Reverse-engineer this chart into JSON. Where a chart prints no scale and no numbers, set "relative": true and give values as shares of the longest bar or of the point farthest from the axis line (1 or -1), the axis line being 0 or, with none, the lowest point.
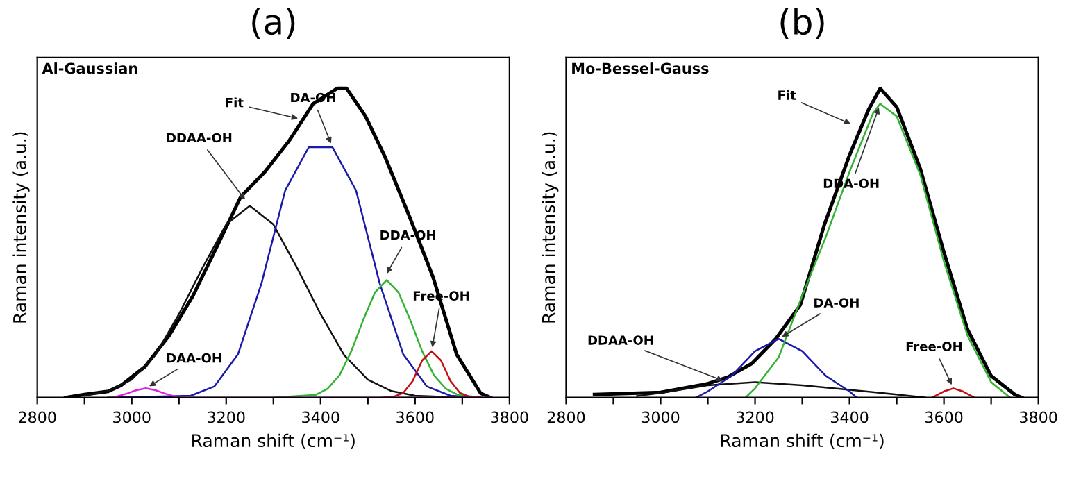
{
  "chart_data": [
    {
      "type": "line",
      "title": "(a)",
      "subtitle": "Al-Gaussian",
      "xlabel": "Raman shift (cm⁻¹)",
      "ylabel": "Raman intensity (a.u.)",
      "relative": true,
      "xlim": [
        2800,
        3800
      ],
      "xticks": [
        2800,
        {
          "value": 2900,
          "label": null
        },
        3000,
        {
          "value": 3100,
          "label": null
        },
        3200,
        {
          "value": 3300,
          "label": null
        },
        3400,
        {
          "value": 3500,
          "label": null
        },
        3600,
        {
          "value": 3700,
          "label": null
        },
        3800
      ],
      "series": [
        {
          "color": "#000000",
          "x": [
            2860,
            2900,
            2950,
            2978,
            3028,
            3079,
            3130,
            3181,
            3231,
            3282,
            3333,
            3384,
            3435,
            3455,
            3495,
            3536,
            3587,
            3638,
            3688,
            3739,
            3760
          ],
          "values": [
            0.0,
            0.01,
            0.02,
            0.04,
            0.1,
            0.2,
            0.33,
            0.49,
            0.65,
            0.73,
            0.83,
            0.95,
            1.0,
            1.0,
            0.91,
            0.78,
            0.59,
            0.39,
            0.14,
            0.014,
            0.0
          ]
        },
        {
          "color": "#111111",
          "x": [
            2900,
            2950,
            3000,
            3050,
            3100,
            3150,
            3200,
            3250,
            3300,
            3350,
            3400,
            3450,
            3500,
            3550,
            3600,
            3700
          ],
          "values": [
            0.006,
            0.021,
            0.058,
            0.137,
            0.27,
            0.42,
            0.56,
            0.62,
            0.56,
            0.42,
            0.27,
            0.137,
            0.058,
            0.021,
            0.006,
            0.0
          ]
        },
        {
          "color": "#1a1aaa",
          "x": [
            2950,
            3125,
            3175,
            3225,
            3275,
            3325,
            3375,
            3425,
            3475,
            3525,
            3575,
            3625,
            3675,
            3740
          ],
          "values": [
            0.0,
            0.006,
            0.036,
            0.14,
            0.37,
            0.67,
            0.81,
            0.81,
            0.67,
            0.37,
            0.14,
            0.036,
            0.006,
            0.0
          ]
        },
        {
          "color": "#33b233",
          "x": [
            3300,
            3390,
            3415,
            3440,
            3465,
            3490,
            3515,
            3540,
            3565,
            3590,
            3615,
            3640,
            3665,
            3690,
            3740
          ],
          "values": [
            0.0,
            0.009,
            0.029,
            0.072,
            0.15,
            0.25,
            0.34,
            0.38,
            0.34,
            0.25,
            0.15,
            0.072,
            0.029,
            0.009,
            0.0
          ]
        },
        {
          "color": "#c01010",
          "x": [
            3530,
            3555,
            3575,
            3595,
            3615,
            3635,
            3655,
            3675,
            3695,
            3715,
            3740
          ],
          "values": [
            0.0,
            0.003,
            0.015,
            0.054,
            0.12,
            0.15,
            0.12,
            0.054,
            0.015,
            0.003,
            0.0
          ]
        },
        {
          "color": "#dd22dd",
          "x": [
            2960,
            2990,
            3010,
            3030,
            3050,
            3070,
            3100,
            3760
          ],
          "values": [
            0.0,
            0.013,
            0.024,
            0.03,
            0.024,
            0.013,
            0.0,
            0.0
          ]
        }
      ],
      "annotations": [
        {
          "text": "Fit",
          "x": 3360,
          "y": 0.9
        },
        {
          "text": "DDAA-OH",
          "x": 3245,
          "y": 0.63
        },
        {
          "text": "DA-OH",
          "x": 3425,
          "y": 0.81
        },
        {
          "text": "DDA-OH",
          "x": 3536,
          "y": 0.39
        },
        {
          "text": "Free-OH",
          "x": 3635,
          "y": 0.15
        },
        {
          "text": "DAA-OH",
          "x": 3030,
          "y": 0.03
        }
      ]
    },
    {
      "type": "line",
      "title": "(b)",
      "subtitle": "Mo-Bessel-Gauss",
      "xlabel": "Raman shift (cm⁻¹)",
      "ylabel": "Raman intensity (a.u.)",
      "relative": true,
      "xlim": [
        2800,
        3800
      ],
      "xticks": [
        2800,
        {
          "value": 2900,
          "label": null
        },
        3000,
        {
          "value": 3100,
          "label": null
        },
        3200,
        {
          "value": 3300,
          "label": null
        },
        3400,
        {
          "value": 3500,
          "label": null
        },
        3600,
        {
          "value": 3700,
          "label": null
        },
        3800
      ],
      "series": [
        {
          "color": "#000000",
          "x": [
            2860,
            3000,
            3100,
            3142,
            3193,
            3244,
            3296,
            3347,
            3399,
            3440,
            3465,
            3500,
            3550,
            3600,
            3650,
            3700,
            3750,
            3765
          ],
          "values": [
            0.01,
            0.017,
            0.045,
            0.066,
            0.11,
            0.19,
            0.3,
            0.56,
            0.78,
            0.93,
            1.0,
            0.94,
            0.74,
            0.47,
            0.22,
            0.07,
            0.01,
            0.0
          ]
        },
        {
          "color": "#111111",
          "x": [
            2950,
            3000,
            3100,
            3200,
            3300,
            3400,
            3500,
            3560
          ],
          "values": [
            0.005,
            0.015,
            0.04,
            0.05,
            0.04,
            0.025,
            0.01,
            0.0
          ]
        },
        {
          "color": "#1a1aaa",
          "x": [
            3075,
            3100,
            3150,
            3200,
            3250,
            3300,
            3350,
            3400,
            3415
          ],
          "values": [
            0.0,
            0.02,
            0.07,
            0.15,
            0.19,
            0.15,
            0.07,
            0.02,
            0.0
          ]
        },
        {
          "color": "#33b233",
          "x": [
            3180,
            3200,
            3250,
            3300,
            3350,
            3400,
            3450,
            3465,
            3500,
            3550,
            3600,
            3650,
            3700,
            3740
          ],
          "values": [
            0.0,
            0.03,
            0.13,
            0.33,
            0.52,
            0.73,
            0.92,
            0.95,
            0.91,
            0.72,
            0.44,
            0.2,
            0.05,
            0.0
          ]
        },
        {
          "color": "#c01010",
          "x": [
            3575,
            3600,
            3620,
            3640,
            3665
          ],
          "values": [
            0.0,
            0.02,
            0.03,
            0.02,
            0.0
          ]
        }
      ],
      "annotations": [
        {
          "text": "Fit",
          "x": 3410,
          "y": 0.88
        },
        {
          "text": "DDA-OH",
          "x": 3465,
          "y": 0.95
        },
        {
          "text": "DA-OH",
          "x": 3250,
          "y": 0.19
        },
        {
          "text": "DDAA-OH",
          "x": 3140,
          "y": 0.05
        },
        {
          "text": "Free-OH",
          "x": 3620,
          "y": 0.03
        }
      ]
    }
  ]
}
